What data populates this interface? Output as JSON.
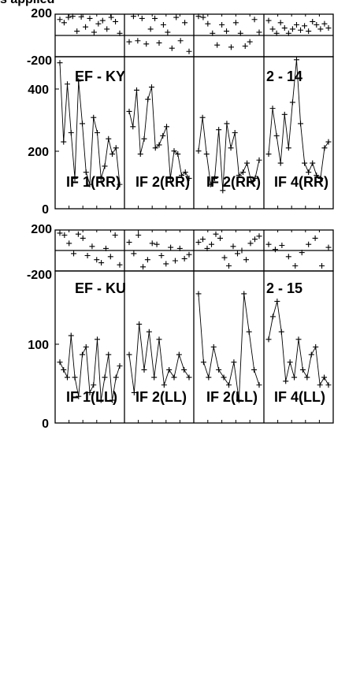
{
  "page": {
    "title_fragment": "s applied"
  },
  "chart_data": [
    {
      "type": "line",
      "band_label": "EF - KY",
      "scan_label": "2 - 14",
      "phase_axis": {
        "range": [
          -200,
          200
        ],
        "tick_labels": [
          "200",
          "-200"
        ]
      },
      "amp_axis": {
        "range": [
          0,
          500
        ],
        "tick_labels": [
          "400",
          "200",
          "0"
        ]
      },
      "subpanels": [
        {
          "label": "IF 1(RR)",
          "phase": [
            150,
            120,
            170,
            180,
            40,
            175,
            80,
            160,
            30,
            110,
            140,
            60,
            170,
            130,
            20
          ],
          "amplitude": [
            480,
            220,
            410,
            250,
            100,
            420,
            280,
            120,
            80,
            300,
            250,
            100,
            140,
            230,
            180,
            200,
            80
          ]
        },
        {
          "label": "IF 2(RR)",
          "phase": [
            -60,
            180,
            -50,
            160,
            -80,
            60,
            160,
            -70,
            100,
            30,
            -120,
            170,
            -50,
            120,
            -150
          ],
          "amplitude": [
            320,
            270,
            390,
            180,
            230,
            360,
            400,
            200,
            210,
            240,
            270,
            100,
            190,
            180,
            110,
            120,
            100
          ]
        },
        {
          "label": "IF 2(RR)",
          "phase": [
            180,
            170,
            110,
            20,
            -90,
            100,
            40,
            -110,
            120,
            20,
            -100,
            -60,
            150,
            30
          ],
          "amplitude": [
            190,
            300,
            180,
            80,
            100,
            260,
            60,
            280,
            200,
            250,
            110,
            120,
            150,
            90,
            100,
            160
          ]
        },
        {
          "label": "IF 4(RR)",
          "phase": [
            140,
            60,
            20,
            120,
            70,
            20,
            60,
            100,
            50,
            90,
            40,
            130,
            100,
            60,
            110,
            70
          ],
          "amplitude": [
            180,
            330,
            240,
            150,
            310,
            200,
            350,
            490,
            280,
            150,
            120,
            150,
            110,
            100,
            200,
            220
          ]
        }
      ]
    },
    {
      "type": "line",
      "band_label": "EF - KU",
      "scan_label": "2 - 15",
      "phase_axis": {
        "range": [
          -200,
          200
        ],
        "tick_labels": [
          "200",
          "-200"
        ]
      },
      "amp_axis": {
        "range": [
          0,
          200
        ],
        "tick_labels": [
          "100",
          "0"
        ]
      },
      "subpanels": [
        {
          "label": "IF 1(LL)",
          "phase": [
            170,
            150,
            70,
            -30,
            160,
            120,
            -50,
            40,
            -90,
            -120,
            20,
            -60,
            150,
            -140
          ],
          "amplitude": [
            80,
            70,
            60,
            115,
            60,
            35,
            90,
            100,
            40,
            50,
            110,
            30,
            60,
            90,
            30,
            60,
            75
          ]
        },
        {
          "label": "IF 2(LL)",
          "phase": [
            80,
            -30,
            150,
            -160,
            -90,
            70,
            60,
            -50,
            -130,
            30,
            -100,
            20,
            -80,
            -40
          ],
          "amplitude": [
            90,
            40,
            130,
            70,
            120,
            60,
            110,
            50,
            70,
            60,
            90,
            70,
            60
          ]
        },
        {
          "label": "IF 2(LL)",
          "phase": [
            80,
            110,
            20,
            60,
            160,
            120,
            -70,
            -150,
            40,
            -30,
            0,
            -90,
            70,
            110,
            140
          ],
          "amplitude": [
            170,
            80,
            60,
            100,
            70,
            60,
            50,
            80,
            30,
            170,
            120,
            70,
            50
          ]
        },
        {
          "label": "IF 4(LL)",
          "phase": [
            60,
            10,
            50,
            -60,
            -150,
            -20,
            60,
            120,
            -150,
            30
          ],
          "amplitude": [
            110,
            140,
            160,
            120,
            55,
            80,
            60,
            110,
            70,
            60,
            90,
            100,
            50,
            60,
            50
          ]
        }
      ]
    }
  ]
}
